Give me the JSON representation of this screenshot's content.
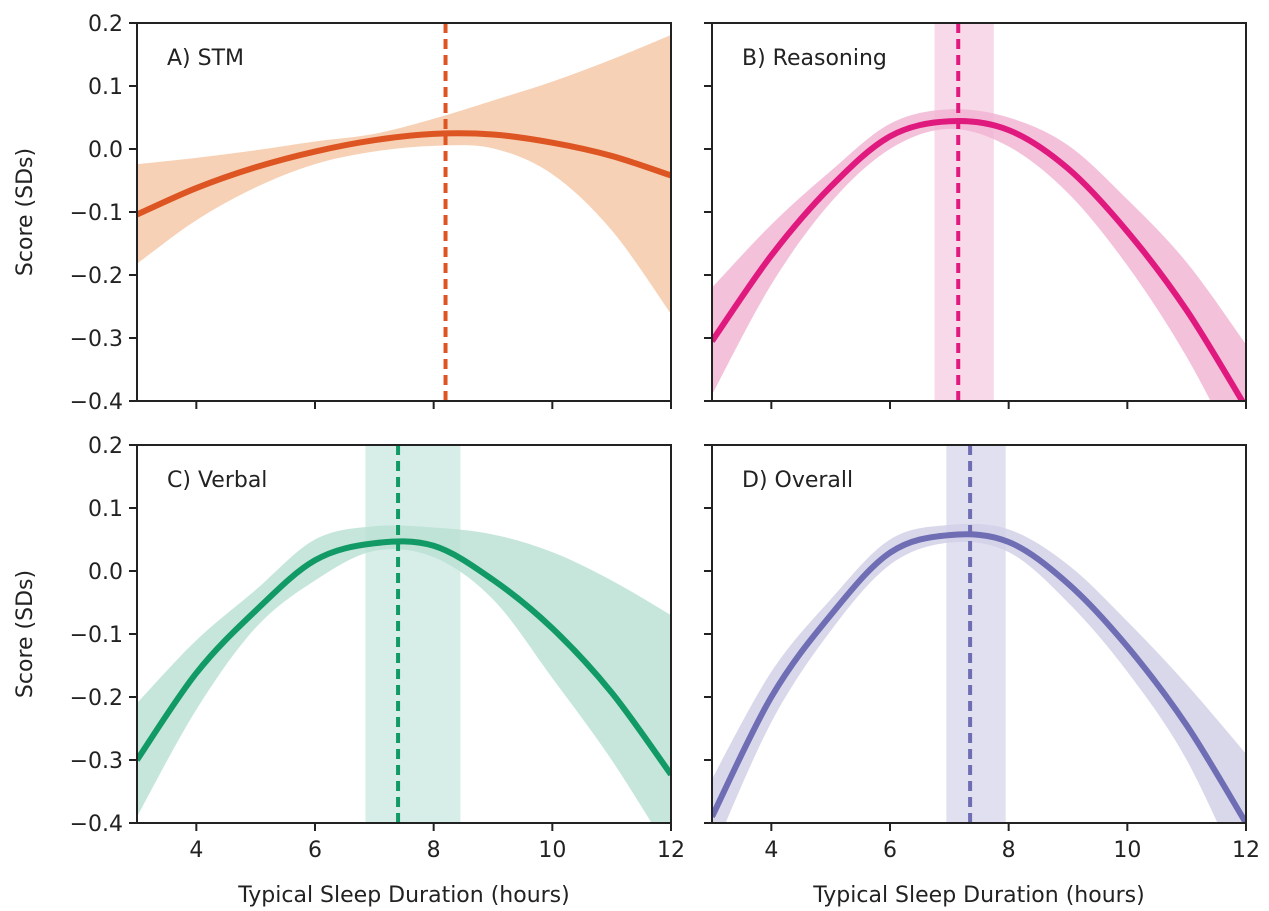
{
  "figure": {
    "ylabel": "Score (SDs)",
    "xlabel": "Typical Sleep Duration (hours)"
  },
  "chart_data": [
    {
      "type": "line",
      "panel_label": "A) STM",
      "color": "#dd5522",
      "band_color": "#f5c7a5",
      "vband_color": "#f5c7a5",
      "peak_x": 8.2,
      "peak_ci": null,
      "x": [
        3,
        4,
        5,
        6,
        7,
        8,
        9,
        10,
        11,
        12
      ],
      "y": [
        -0.104,
        -0.062,
        -0.029,
        -0.004,
        0.014,
        0.024,
        0.023,
        0.01,
        -0.011,
        -0.042
      ],
      "ci_lower": [
        -0.182,
        -0.113,
        -0.061,
        -0.024,
        -0.004,
        0.005,
        0.001,
        -0.04,
        -0.129,
        -0.262
      ],
      "ci_upper": [
        -0.024,
        -0.014,
        -0.002,
        0.012,
        0.024,
        0.048,
        0.077,
        0.107,
        0.142,
        0.181
      ],
      "xlim": [
        3,
        12
      ],
      "ylim": [
        -0.4,
        0.2
      ]
    },
    {
      "type": "line",
      "panel_label": "B) Reasoning",
      "color": "#e0197f",
      "band_color": "#f1b3d3",
      "vband_color": "#f6d2e5",
      "peak_x": 7.15,
      "peak_ci": [
        6.75,
        7.75
      ],
      "x": [
        3,
        4,
        5,
        6,
        7,
        8,
        9,
        10,
        11,
        12
      ],
      "y": [
        -0.305,
        -0.169,
        -0.06,
        0.02,
        0.044,
        0.03,
        -0.031,
        -0.131,
        -0.256,
        -0.41
      ],
      "ci_lower": [
        -0.39,
        -0.215,
        -0.085,
        0.0,
        0.032,
        0.004,
        -0.07,
        -0.185,
        -0.33,
        -0.51
      ],
      "ci_upper": [
        -0.22,
        -0.12,
        -0.035,
        0.04,
        0.063,
        0.05,
        0.006,
        -0.08,
        -0.18,
        -0.31
      ],
      "xlim": [
        3,
        12
      ],
      "ylim": [
        -0.4,
        0.2
      ]
    },
    {
      "type": "line",
      "panel_label": "C) Verbal",
      "color": "#119966",
      "band_color": "#b9e0d3",
      "vband_color": "#cfeae4",
      "peak_x": 7.4,
      "peak_ci": [
        6.85,
        8.45
      ],
      "x": [
        3,
        4,
        5,
        6,
        7,
        8,
        9,
        10,
        11,
        12
      ],
      "y": [
        -0.3,
        -0.162,
        -0.063,
        0.017,
        0.044,
        0.04,
        -0.014,
        -0.091,
        -0.193,
        -0.323
      ],
      "ci_lower": [
        -0.39,
        -0.22,
        -0.09,
        -0.015,
        0.032,
        0.022,
        -0.045,
        -0.17,
        -0.3,
        -0.45
      ],
      "ci_upper": [
        -0.21,
        -0.11,
        -0.03,
        0.05,
        0.071,
        0.069,
        0.058,
        0.03,
        -0.015,
        -0.07
      ],
      "xlim": [
        3,
        12
      ],
      "ylim": [
        -0.4,
        0.2
      ]
    },
    {
      "type": "line",
      "panel_label": "D) Overall",
      "color": "#6f6db3",
      "band_color": "#d1d0e6",
      "vband_color": "#dcdbed",
      "peak_x": 7.35,
      "peak_ci": [
        6.95,
        7.95
      ],
      "x": [
        3,
        4,
        5,
        6,
        7,
        8,
        9,
        10,
        11,
        12
      ],
      "y": [
        -0.39,
        -0.2,
        -0.07,
        0.029,
        0.057,
        0.046,
        -0.02,
        -0.12,
        -0.245,
        -0.4
      ],
      "ci_lower": [
        -0.45,
        -0.24,
        -0.095,
        0.01,
        0.045,
        0.03,
        -0.05,
        -0.16,
        -0.3,
        -0.5
      ],
      "ci_upper": [
        -0.33,
        -0.16,
        -0.045,
        0.05,
        0.073,
        0.066,
        0.01,
        -0.08,
        -0.18,
        -0.29
      ],
      "xlim": [
        3,
        12
      ],
      "ylim": [
        -0.4,
        0.2
      ]
    }
  ],
  "axes": {
    "yticks": [
      -0.4,
      -0.3,
      -0.2,
      -0.1,
      0.0,
      0.1,
      0.2
    ],
    "ytick_labels": [
      "−0.4",
      "−0.3",
      "−0.2",
      "−0.1",
      "0.0",
      "0.1",
      "0.2"
    ],
    "xticks": [
      4,
      6,
      8,
      10,
      12
    ],
    "xtick_labels": [
      "4",
      "6",
      "8",
      "10",
      "12"
    ]
  }
}
